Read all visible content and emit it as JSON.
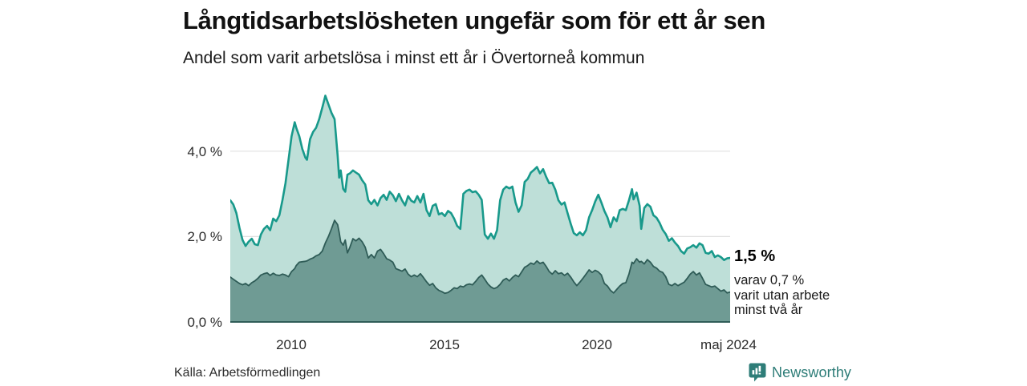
{
  "header": {
    "title": "Långtidsarbetslösheten ungefär som för ett år sen",
    "subtitle": "Andel som varit arbetslösa i minst ett år i Övertorneå kommun"
  },
  "annotation": {
    "total_label": "1,5 %",
    "detail_lines": [
      "varav 0,7 %",
      "varit utan arbete",
      "minst två år"
    ]
  },
  "axes": {
    "y_ticks": [
      "4,0 %",
      "2,0 %",
      "0,0 %"
    ],
    "x_ticks": [
      "2010",
      "2015",
      "2020",
      "maj 2024"
    ]
  },
  "footer": {
    "source": "Källa: Arbetsförmedlingen",
    "brand_name": "Newsworthy"
  },
  "colors": {
    "title_text": "#111111",
    "grid": "#e0e0e0",
    "baseline": "#2f5c57",
    "brand": "#2e7d78",
    "total_fill": "#bedfd8",
    "total_line": "#18998b",
    "two_year_fill": "#6f9b94",
    "two_year_line": "#2f5c57"
  },
  "chart_data": {
    "type": "area",
    "title": "Långtidsarbetslösheten ungefär som för ett år sen",
    "subtitle": "Andel som varit arbetslösa i minst ett år i Övertorneå kommun",
    "unit": "%",
    "x_range": [
      2008.0,
      2024.3
    ],
    "ylim": [
      0,
      5.5
    ],
    "gridlines": [
      2.0,
      4.0
    ],
    "x_tick_positions": [
      2010,
      2015,
      2020,
      2024.3
    ],
    "legend_position": "none",
    "series_names": [
      "arbetslösa minst ett år",
      "varav utan arbete minst två år"
    ],
    "last_values": {
      "total": 1.5,
      "two_year": 0.7
    },
    "points": [
      [
        2008.0,
        2.85,
        1.05
      ],
      [
        2008.1,
        2.75,
        1.0
      ],
      [
        2008.2,
        2.55,
        0.95
      ],
      [
        2008.3,
        2.2,
        0.9
      ],
      [
        2008.4,
        1.92,
        0.87
      ],
      [
        2008.5,
        1.78,
        0.9
      ],
      [
        2008.6,
        1.88,
        0.85
      ],
      [
        2008.7,
        1.95,
        0.92
      ],
      [
        2008.8,
        1.82,
        0.96
      ],
      [
        2008.9,
        1.8,
        1.02
      ],
      [
        2009.0,
        2.05,
        1.1
      ],
      [
        2009.1,
        2.18,
        1.13
      ],
      [
        2009.2,
        2.25,
        1.15
      ],
      [
        2009.3,
        2.15,
        1.09
      ],
      [
        2009.4,
        2.42,
        1.14
      ],
      [
        2009.5,
        2.36,
        1.1
      ],
      [
        2009.6,
        2.5,
        1.09
      ],
      [
        2009.7,
        2.85,
        1.12
      ],
      [
        2009.8,
        3.25,
        1.1
      ],
      [
        2009.9,
        3.8,
        1.06
      ],
      [
        2010.0,
        4.35,
        1.18
      ],
      [
        2010.1,
        4.68,
        1.25
      ],
      [
        2010.15,
        4.55,
        1.32
      ],
      [
        2010.25,
        4.35,
        1.4
      ],
      [
        2010.35,
        4.05,
        1.41
      ],
      [
        2010.45,
        3.85,
        1.42
      ],
      [
        2010.5,
        3.8,
        1.43
      ],
      [
        2010.6,
        4.28,
        1.47
      ],
      [
        2010.7,
        4.45,
        1.5
      ],
      [
        2010.8,
        4.55,
        1.55
      ],
      [
        2010.9,
        4.75,
        1.58
      ],
      [
        2011.0,
        5.02,
        1.66
      ],
      [
        2011.1,
        5.3,
        1.85
      ],
      [
        2011.2,
        5.1,
        2.0
      ],
      [
        2011.3,
        4.9,
        2.18
      ],
      [
        2011.4,
        4.75,
        2.38
      ],
      [
        2011.5,
        3.9,
        2.28
      ],
      [
        2011.55,
        3.38,
        2.1
      ],
      [
        2011.6,
        3.55,
        1.88
      ],
      [
        2011.68,
        3.12,
        1.8
      ],
      [
        2011.75,
        3.05,
        1.92
      ],
      [
        2011.82,
        3.45,
        1.62
      ],
      [
        2011.9,
        3.48,
        1.75
      ],
      [
        2012.0,
        3.55,
        1.95
      ],
      [
        2012.1,
        3.5,
        1.9
      ],
      [
        2012.2,
        3.45,
        1.96
      ],
      [
        2012.3,
        3.32,
        1.88
      ],
      [
        2012.4,
        3.22,
        1.75
      ],
      [
        2012.5,
        2.85,
        1.5
      ],
      [
        2012.6,
        2.76,
        1.58
      ],
      [
        2012.7,
        2.86,
        1.5
      ],
      [
        2012.8,
        2.73,
        1.66
      ],
      [
        2012.9,
        2.9,
        1.7
      ],
      [
        2013.0,
        2.98,
        1.6
      ],
      [
        2013.1,
        2.86,
        1.48
      ],
      [
        2013.2,
        3.05,
        1.45
      ],
      [
        2013.3,
        2.97,
        1.4
      ],
      [
        2013.4,
        2.83,
        1.25
      ],
      [
        2013.5,
        3.0,
        1.22
      ],
      [
        2013.6,
        2.85,
        1.19
      ],
      [
        2013.7,
        2.73,
        1.24
      ],
      [
        2013.8,
        2.95,
        1.12
      ],
      [
        2013.9,
        2.84,
        1.06
      ],
      [
        2014.0,
        2.8,
        1.1
      ],
      [
        2014.1,
        2.95,
        1.06
      ],
      [
        2014.2,
        2.8,
        1.13
      ],
      [
        2014.3,
        3.0,
        1.04
      ],
      [
        2014.4,
        2.62,
        0.94
      ],
      [
        2014.5,
        2.48,
        0.86
      ],
      [
        2014.6,
        2.72,
        0.9
      ],
      [
        2014.7,
        2.76,
        0.8
      ],
      [
        2014.8,
        2.52,
        0.74
      ],
      [
        2014.9,
        2.55,
        0.71
      ],
      [
        2015.0,
        2.48,
        0.67
      ],
      [
        2015.1,
        2.6,
        0.69
      ],
      [
        2015.2,
        2.55,
        0.74
      ],
      [
        2015.3,
        2.42,
        0.8
      ],
      [
        2015.4,
        2.25,
        0.78
      ],
      [
        2015.5,
        2.18,
        0.84
      ],
      [
        2015.6,
        3.0,
        0.82
      ],
      [
        2015.7,
        3.07,
        0.87
      ],
      [
        2015.8,
        3.1,
        0.89
      ],
      [
        2015.9,
        3.04,
        0.87
      ],
      [
        2016.0,
        3.06,
        0.95
      ],
      [
        2016.1,
        2.98,
        1.04
      ],
      [
        2016.2,
        2.86,
        1.1
      ],
      [
        2016.3,
        2.05,
        1.0
      ],
      [
        2016.4,
        1.95,
        0.89
      ],
      [
        2016.5,
        2.07,
        0.82
      ],
      [
        2016.6,
        1.95,
        0.78
      ],
      [
        2016.7,
        2.15,
        0.81
      ],
      [
        2016.8,
        2.85,
        0.88
      ],
      [
        2016.9,
        3.1,
        0.98
      ],
      [
        2017.0,
        3.17,
        1.02
      ],
      [
        2017.1,
        3.13,
        0.96
      ],
      [
        2017.2,
        3.17,
        1.04
      ],
      [
        2017.3,
        2.8,
        1.1
      ],
      [
        2017.4,
        2.58,
        1.06
      ],
      [
        2017.5,
        2.73,
        1.17
      ],
      [
        2017.6,
        3.28,
        1.28
      ],
      [
        2017.7,
        3.35,
        1.32
      ],
      [
        2017.8,
        3.5,
        1.38
      ],
      [
        2017.9,
        3.56,
        1.35
      ],
      [
        2018.0,
        3.63,
        1.43
      ],
      [
        2018.1,
        3.48,
        1.37
      ],
      [
        2018.2,
        3.58,
        1.4
      ],
      [
        2018.3,
        3.4,
        1.3
      ],
      [
        2018.4,
        3.25,
        1.18
      ],
      [
        2018.5,
        3.26,
        1.12
      ],
      [
        2018.6,
        3.1,
        1.2
      ],
      [
        2018.7,
        2.85,
        1.13
      ],
      [
        2018.8,
        2.75,
        1.15
      ],
      [
        2018.9,
        2.8,
        1.09
      ],
      [
        2019.0,
        2.55,
        1.14
      ],
      [
        2019.1,
        2.3,
        1.05
      ],
      [
        2019.2,
        2.08,
        0.94
      ],
      [
        2019.3,
        2.03,
        0.85
      ],
      [
        2019.4,
        2.1,
        0.93
      ],
      [
        2019.5,
        2.03,
        1.02
      ],
      [
        2019.6,
        2.15,
        1.12
      ],
      [
        2019.7,
        2.45,
        1.22
      ],
      [
        2019.8,
        2.62,
        1.16
      ],
      [
        2019.9,
        2.82,
        1.21
      ],
      [
        2020.0,
        2.98,
        1.17
      ],
      [
        2020.1,
        2.8,
        1.1
      ],
      [
        2020.2,
        2.6,
        0.9
      ],
      [
        2020.3,
        2.45,
        0.84
      ],
      [
        2020.4,
        2.22,
        0.74
      ],
      [
        2020.5,
        2.45,
        0.68
      ],
      [
        2020.6,
        2.36,
        0.76
      ],
      [
        2020.7,
        2.62,
        0.84
      ],
      [
        2020.8,
        2.65,
        0.9
      ],
      [
        2020.9,
        2.62,
        0.92
      ],
      [
        2021.0,
        2.85,
        1.12
      ],
      [
        2021.1,
        3.11,
        1.4
      ],
      [
        2021.15,
        2.87,
        1.37
      ],
      [
        2021.25,
        3.03,
        1.48
      ],
      [
        2021.35,
        2.72,
        1.4
      ],
      [
        2021.4,
        2.18,
        1.42
      ],
      [
        2021.5,
        2.67,
        1.36
      ],
      [
        2021.6,
        2.76,
        1.46
      ],
      [
        2021.7,
        2.7,
        1.4
      ],
      [
        2021.8,
        2.5,
        1.3
      ],
      [
        2021.9,
        2.44,
        1.26
      ],
      [
        2022.0,
        2.32,
        1.19
      ],
      [
        2022.1,
        2.16,
        1.16
      ],
      [
        2022.2,
        2.06,
        1.06
      ],
      [
        2022.3,
        1.9,
        0.88
      ],
      [
        2022.4,
        1.96,
        0.85
      ],
      [
        2022.5,
        1.86,
        0.9
      ],
      [
        2022.6,
        1.78,
        0.85
      ],
      [
        2022.7,
        1.66,
        0.89
      ],
      [
        2022.8,
        1.6,
        0.93
      ],
      [
        2022.9,
        1.72,
        1.02
      ],
      [
        2023.0,
        1.75,
        1.12
      ],
      [
        2023.1,
        1.8,
        1.18
      ],
      [
        2023.2,
        1.74,
        1.1
      ],
      [
        2023.3,
        1.84,
        1.15
      ],
      [
        2023.4,
        1.8,
        1.02
      ],
      [
        2023.5,
        1.62,
        0.88
      ],
      [
        2023.6,
        1.6,
        0.85
      ],
      [
        2023.7,
        1.66,
        0.82
      ],
      [
        2023.8,
        1.52,
        0.84
      ],
      [
        2023.9,
        1.56,
        0.78
      ],
      [
        2024.0,
        1.52,
        0.72
      ],
      [
        2024.1,
        1.45,
        0.75
      ],
      [
        2024.2,
        1.49,
        0.68
      ],
      [
        2024.3,
        1.5,
        0.7
      ]
    ]
  }
}
